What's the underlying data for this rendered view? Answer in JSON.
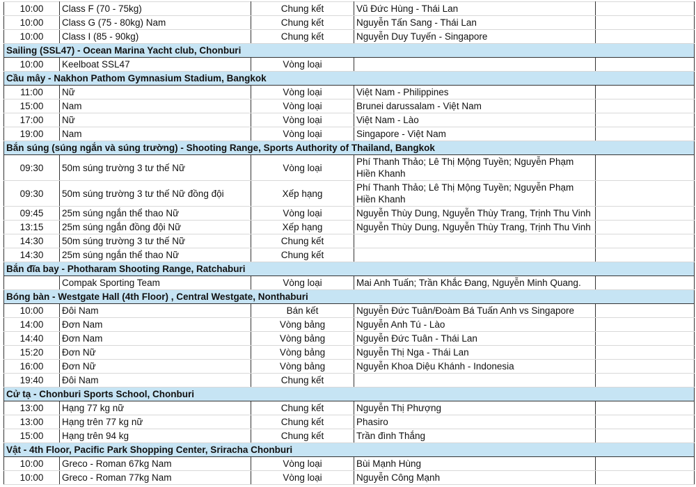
{
  "rows": [
    {
      "time": "10:00",
      "event": "Class F (70 - 75kg)",
      "stage": "Chung kết",
      "athletes": "Vũ Đức Hùng - Thái Lan"
    },
    {
      "time": "10:00",
      "event": "Class G (75 - 80kg) Nam",
      "stage": "Chung kết",
      "athletes": "Nguyễn Tấn Sang - Thái Lan"
    },
    {
      "time": "10:00",
      "event": "Class I (85 - 90kg)",
      "stage": "Chung kết",
      "athletes": "Nguyễn Duy Tuyến - Singapore"
    },
    {
      "header": "Sailing (SSL47) - Ocean Marina Yacht club, Chonburi"
    },
    {
      "time": "10:00",
      "event": "Keelboat SSL47",
      "stage": "Vòng loại",
      "athletes": ""
    },
    {
      "header": "Cầu mây - Nakhon Pathom Gymnasium Stadium, Bangkok"
    },
    {
      "time": "11:00",
      "event": "Nữ",
      "stage": "Vòng loại",
      "athletes": "Việt Nam - Philippines"
    },
    {
      "time": "15:00",
      "event": "Nam",
      "stage": "Vòng loại",
      "athletes": "Brunei darussalam  - Việt Nam"
    },
    {
      "time": "17:00",
      "event": "Nữ",
      "stage": "Vòng loại",
      "athletes": "Việt Nam - Lào"
    },
    {
      "time": "19:00",
      "event": "Nam",
      "stage": "Vòng loại",
      "athletes": "Singapore - Việt Nam"
    },
    {
      "header": "Bắn súng (súng ngắn và súng trường) - Shooting Range, Sports Authority of Thailand, Bangkok"
    },
    {
      "time": "09:30",
      "event": "50m súng trường 3 tư thế Nữ",
      "stage": "Vòng loại",
      "athletes": "Phí Thanh Thảo; Lê Thị Mộng Tuyền; Nguyễn Phạm Hiền Khanh",
      "tall": true
    },
    {
      "time": "09:30",
      "event": "50m súng trường 3 tư thế Nữ đồng đội",
      "stage": "Xếp hạng",
      "athletes": "Phí Thanh Thảo; Lê Thị Mộng Tuyền; Nguyễn Phạm Hiền Khanh",
      "tall": true
    },
    {
      "time": "09:45",
      "event": "25m súng ngắn thể thao Nữ",
      "stage": "Vòng loại",
      "athletes": "Nguyễn Thùy Dung, Nguyễn Thùy Trang, Trịnh Thu Vinh"
    },
    {
      "time": "13:15",
      "event": "25m súng ngắn đồng đội Nữ",
      "stage": "Xếp hạng",
      "athletes": "Nguyễn Thùy Dung, Nguyễn Thùy Trang, Trịnh Thu Vinh"
    },
    {
      "time": "14:30",
      "event": "50m súng trường 3 tư thế Nữ",
      "stage": "Chung kết",
      "athletes": ""
    },
    {
      "time": "14:30",
      "event": "25m súng ngắn thể thao Nữ",
      "stage": "Chung kết",
      "athletes": ""
    },
    {
      "header": "Bắn đĩa bay - Photharam Shooting Range, Ratchaburi"
    },
    {
      "time": "",
      "event": "Compak Sporting Team",
      "stage": "Vòng loại",
      "athletes": "Mai Anh Tuấn; Trần Khắc Đang, Nguyễn Minh Quang."
    },
    {
      "header": "Bóng bàn - Westgate Hall (4th Floor) , Central Westgate, Nonthaburi"
    },
    {
      "time": "10:00",
      "event": "Đôi Nam",
      "stage": "Bán kết",
      "athletes": "Nguyễn Đức Tuân/Đoàm Bá Tuấn Anh vs Singapore"
    },
    {
      "time": "14:00",
      "event": "Đơn Nam",
      "stage": "Vòng bảng",
      "athletes": "Nguyễn Anh Tú - Lào"
    },
    {
      "time": "14:40",
      "event": "Đơn Nam",
      "stage": "Vòng bảng",
      "athletes": "Nguyễn Đức Tuân - Thái Lan"
    },
    {
      "time": "15:20",
      "event": "Đơn Nữ",
      "stage": "Vòng bảng",
      "athletes": "Nguyễn Thị Nga - Thái Lan"
    },
    {
      "time": "16:00",
      "event": "Đơn Nữ",
      "stage": "Vòng bảng",
      "athletes": "Nguyễn Khoa Diệu Khánh - Indonesia"
    },
    {
      "time": "19:40",
      "event": "Đôi Nam",
      "stage": "Chung kết",
      "athletes": ""
    },
    {
      "header": "Cử tạ - Chonburi Sports School, Chonburi"
    },
    {
      "time": "13:00",
      "event": "Hạng 77 kg nữ",
      "stage": "Chung kết",
      "athletes": "Nguyễn Thị Phượng"
    },
    {
      "time": "13:00",
      "event": "Hạng trên 77 kg nữ",
      "stage": "Chung kết",
      "athletes": "Phasiro"
    },
    {
      "time": "15:00",
      "event": "Hạng trên 94 kg",
      "stage": "Chung kết",
      "athletes": "Trần đình Thắng"
    },
    {
      "header": "Vật - 4th Floor, Pacific Park Shopping Center, Sriracha Chonburi"
    },
    {
      "time": "10:00",
      "event": "Greco - Roman 67kg Nam",
      "stage": "Vòng loại",
      "athletes": "Bùi Mạnh Hùng"
    },
    {
      "time": "10:00",
      "event": "Greco - Roman 77kg Nam",
      "stage": "Vòng loại",
      "athletes": "Nguyễn Công Mạnh"
    }
  ],
  "colors": {
    "section_header_bg": "#c6e4f4",
    "border": "#333333"
  }
}
